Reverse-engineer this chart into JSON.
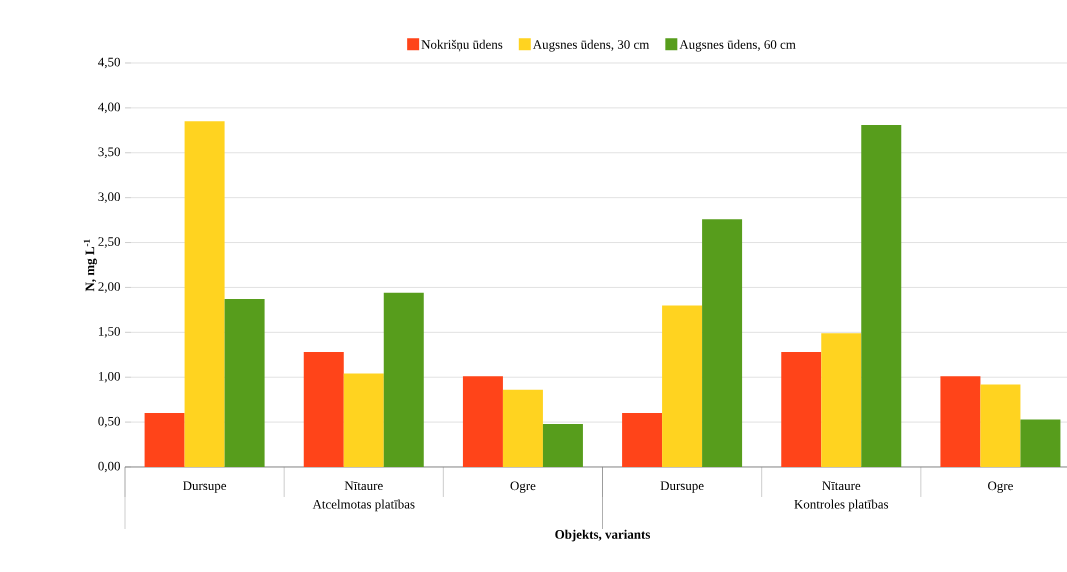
{
  "chart_data": {
    "type": "bar",
    "categories": [
      "Dursupe",
      "Nītaure",
      "Ogre",
      "Dursupe",
      "Nītaure",
      "Ogre"
    ],
    "series": [
      {
        "name": "Nokrišņu ūdens",
        "color": "#ff4419",
        "values": [
          0.6,
          1.28,
          1.01,
          0.6,
          1.28,
          1.01
        ]
      },
      {
        "name": "Augsnes ūdens, 30 cm",
        "color": "#ffd320",
        "values": [
          3.85,
          1.04,
          0.86,
          1.8,
          1.49,
          0.92
        ]
      },
      {
        "name": "Augsnes ūdens, 60 cm",
        "color": "#579d1c",
        "values": [
          1.87,
          1.94,
          0.48,
          2.76,
          3.81,
          0.53
        ]
      }
    ],
    "xlabel": "Objekts, variants",
    "ylabel": "N, mg L$^{-1}$",
    "annotations": [
      "Atcelmotas platības",
      "Kontroles platības"
    ],
    "ylim": [
      0,
      4.5
    ],
    "yticks": [
      {
        "value": 0,
        "label": "0,00"
      },
      {
        "value": 0.5,
        "label": "0,50"
      },
      {
        "value": 1,
        "label": "1,00"
      },
      {
        "value": 1.5,
        "label": "1,50"
      },
      {
        "value": 2,
        "label": "2,00"
      },
      {
        "value": 2.5,
        "label": "2,50"
      },
      {
        "value": 3,
        "label": "3,00"
      },
      {
        "value": 3.5,
        "label": "3,50"
      },
      {
        "value": 4,
        "label": "4,00"
      },
      {
        "value": 4.5,
        "label": "4,50"
      }
    ],
    "grid": "y",
    "legend": "top"
  }
}
